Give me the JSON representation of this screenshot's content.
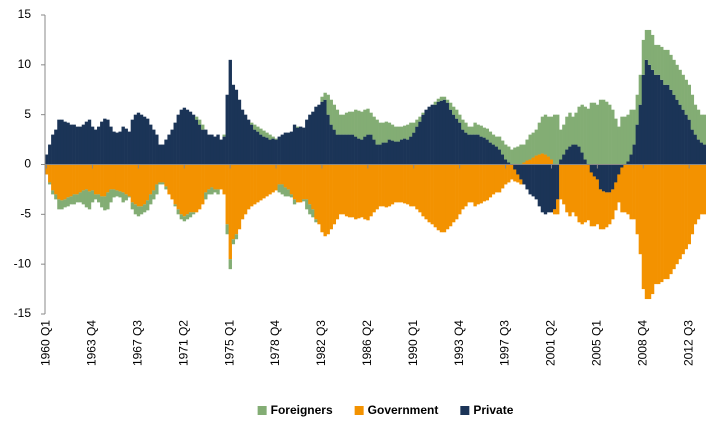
{
  "chart_data": {
    "type": "bar",
    "stacked": true,
    "categories": [
      "1960 Q1",
      null,
      null,
      null,
      null,
      null,
      null,
      null,
      null,
      null,
      null,
      null,
      null,
      null,
      null,
      "1963 Q4",
      null,
      null,
      null,
      null,
      null,
      null,
      null,
      null,
      null,
      null,
      null,
      null,
      null,
      null,
      "1967 Q3",
      null,
      null,
      null,
      null,
      null,
      null,
      null,
      null,
      null,
      null,
      null,
      null,
      null,
      null,
      "1971 Q2",
      null,
      null,
      null,
      null,
      null,
      null,
      null,
      null,
      null,
      null,
      null,
      null,
      null,
      null,
      "1975 Q1",
      null,
      null,
      null,
      null,
      null,
      null,
      null,
      null,
      null,
      null,
      null,
      null,
      null,
      null,
      "1978 Q4",
      null,
      null,
      null,
      null,
      null,
      null,
      null,
      null,
      null,
      null,
      null,
      null,
      null,
      null,
      "1982 Q3",
      null,
      null,
      null,
      null,
      null,
      null,
      null,
      null,
      null,
      null,
      null,
      null,
      null,
      null,
      "1986 Q2",
      null,
      null,
      null,
      null,
      null,
      null,
      null,
      null,
      null,
      null,
      null,
      null,
      null,
      null,
      "1990 Q1",
      null,
      null,
      null,
      null,
      null,
      null,
      null,
      null,
      null,
      null,
      null,
      null,
      null,
      null,
      "1993 Q4",
      null,
      null,
      null,
      null,
      null,
      null,
      null,
      null,
      null,
      null,
      null,
      null,
      null,
      null,
      "1997 Q3",
      null,
      null,
      null,
      null,
      null,
      null,
      null,
      null,
      null,
      null,
      null,
      null,
      null,
      null,
      "2001 Q2",
      null,
      null,
      null,
      null,
      null,
      null,
      null,
      null,
      null,
      null,
      null,
      null,
      null,
      null,
      "2005 Q1",
      null,
      null,
      null,
      null,
      null,
      null,
      null,
      null,
      null,
      null,
      null,
      null,
      null,
      null,
      "2008 Q4",
      null,
      null,
      null,
      null,
      null,
      null,
      null,
      null,
      null,
      null,
      null,
      null,
      null,
      null,
      "2012 Q3",
      null,
      null,
      null,
      null,
      null
    ],
    "series": [
      {
        "name": "Foreigners",
        "color": "#83ad74",
        "values": [
          0,
          -0.2,
          -0.4,
          -0.5,
          -1,
          -0.9,
          -0.8,
          -0.9,
          -0.8,
          -1,
          -0.8,
          -1,
          -1.4,
          -1.8,
          -1.8,
          -1.2,
          -0.5,
          -0.8,
          -1.1,
          -1.4,
          -1.7,
          -1.3,
          -0.8,
          -0.6,
          -0.6,
          -1,
          -0.6,
          -0.1,
          -0.7,
          -1,
          -1,
          -0.8,
          -0.8,
          -1,
          -1,
          -0.9,
          -1,
          -0.2,
          -0.2,
          -0.3,
          0,
          0,
          -0.2,
          -0.5,
          -0.5,
          -0.5,
          -0.5,
          -0.5,
          -0.2,
          0.3,
          0.5,
          0.5,
          -0.7,
          -0.5,
          -0.7,
          -0.3,
          -0.5,
          0,
          0.2,
          -1,
          -1,
          -0.5,
          -0.5,
          0,
          0,
          0,
          0,
          0.2,
          0.5,
          0.5,
          0.6,
          0.6,
          0.5,
          0.5,
          0.2,
          0.1,
          -0.8,
          -1,
          -0.9,
          -0.7,
          -0.3,
          -0.5,
          0.1,
          0,
          -0.2,
          -1,
          -1,
          -0.8,
          -0.3,
          0,
          0.5,
          0.7,
          2,
          2.5,
          2.5,
          2.5,
          2,
          2,
          2.2,
          2.3,
          2.3,
          2.7,
          2.8,
          2.8,
          2.7,
          2.6,
          2.2,
          2.3,
          2.5,
          2.2,
          2,
          2.1,
          1.7,
          1.6,
          1.5,
          1.5,
          1.3,
          1.3,
          1.5,
          1.4,
          1,
          0.7,
          0.5,
          0.2,
          0,
          0,
          0,
          0.3,
          0.3,
          0.4,
          0.3,
          0.3,
          0.7,
          0.8,
          0.9,
          0.8,
          1,
          1,
          0.8,
          0.8,
          1.2,
          1,
          1.1,
          1,
          1.1,
          1.1,
          1,
          1,
          1.3,
          1.4,
          1.5,
          1.6,
          1.5,
          1.7,
          1.8,
          2,
          1.8,
          2.1,
          2.5,
          2.5,
          2.6,
          3.2,
          3.7,
          4,
          4,
          4.3,
          5,
          5,
          3,
          3,
          3.3,
          3.4,
          2.8,
          3.2,
          4,
          4.8,
          5.3,
          5.6,
          6.2,
          6.2,
          6,
          6.5,
          6.5,
          6.3,
          6,
          5.5,
          4.6,
          3.8,
          4.8,
          4.8,
          4.7,
          4.5,
          3.5,
          3,
          3,
          3.5,
          3,
          3.5,
          3.5,
          3,
          3,
          3.3,
          3.5,
          3.5,
          3.5,
          3.5,
          3.5,
          3.5,
          3.5,
          3.5,
          3.5,
          3.5,
          3,
          3,
          2.8,
          3
        ]
      },
      {
        "name": "Government",
        "color": "#f39200",
        "values": [
          -1,
          -1.8,
          -2.6,
          -3,
          -3.5,
          -3.6,
          -3.5,
          -3.3,
          -3.2,
          -3,
          -3,
          -2.8,
          -2.6,
          -2.5,
          -2.7,
          -2.6,
          -3,
          -3,
          -3.2,
          -3.2,
          -2.8,
          -2.5,
          -2.5,
          -2.6,
          -2.7,
          -2.8,
          -3,
          -3.2,
          -3.8,
          -4,
          -4.2,
          -4.2,
          -4,
          -3.6,
          -3,
          -2.6,
          -2,
          -1.8,
          -1.8,
          -2.2,
          -3,
          -3.5,
          -4,
          -4.5,
          -5,
          -5.2,
          -5,
          -4.8,
          -4.8,
          -4.8,
          -4.5,
          -4,
          -2.8,
          -2.5,
          -2.3,
          -2.5,
          -2.5,
          -2.5,
          -3,
          -6,
          -9.5,
          -7.5,
          -7,
          -6.5,
          -5.5,
          -5,
          -4.5,
          -4.2,
          -4,
          -3.8,
          -3.6,
          -3.4,
          -3.2,
          -3,
          -2.8,
          -2.6,
          -2,
          -2,
          -2.3,
          -2.5,
          -3,
          -3.5,
          -3.8,
          -3.8,
          -3.5,
          -3.5,
          -4,
          -4.5,
          -5.5,
          -6,
          -6.8,
          -7.2,
          -7,
          -6.5,
          -6,
          -5.5,
          -5,
          -5,
          -5.2,
          -5.3,
          -5.3,
          -5.5,
          -5.4,
          -5.3,
          -5.5,
          -5.6,
          -5.2,
          -4.8,
          -4.5,
          -4.2,
          -4.2,
          -4.3,
          -4.2,
          -4,
          -3.8,
          -3.8,
          -3.8,
          -3.9,
          -4,
          -4.2,
          -4.2,
          -4.5,
          -4.8,
          -5.2,
          -5.5,
          -5.8,
          -6,
          -6.3,
          -6.6,
          -6.8,
          -6.8,
          -6.5,
          -6.2,
          -5.8,
          -5.5,
          -5,
          -4.5,
          -4.2,
          -3.8,
          -3.8,
          -4.2,
          -4,
          -3.9,
          -3.7,
          -3.6,
          -3.3,
          -3,
          -2.8,
          -2.8,
          -2.4,
          -2,
          -1.8,
          -1.5,
          -1.2,
          -0.8,
          -0.5,
          0.2,
          0.4,
          0.5,
          0.7,
          0.9,
          1,
          1.1,
          1,
          0.8,
          0.5,
          -0.5,
          -1.5,
          -3.5,
          -4,
          -4.8,
          -5.2,
          -4.8,
          -5.2,
          -5.8,
          -6,
          -5.8,
          -5.6,
          -5.4,
          -5,
          -4.5,
          -4,
          -3.8,
          -3.5,
          -3.2,
          -3,
          -2.8,
          -2.8,
          -4.5,
          -4.8,
          -5,
          -5.5,
          -5.5,
          -7,
          -9,
          -12.5,
          -13.5,
          -13.5,
          -13,
          -12,
          -12,
          -11.8,
          -11.5,
          -11.5,
          -11,
          -10.5,
          -10,
          -9.5,
          -9,
          -8.5,
          -8,
          -7,
          -6,
          -5.5,
          -5,
          -5
        ]
      },
      {
        "name": "Private",
        "color": "#1b3457",
        "values": [
          1,
          2,
          3,
          3.5,
          4.5,
          4.5,
          4.3,
          4.2,
          4,
          4,
          3.8,
          3.8,
          4,
          4.3,
          4.5,
          3.8,
          3.5,
          3.8,
          4.3,
          4.6,
          4.5,
          3.8,
          3.3,
          3.2,
          3.3,
          3.8,
          3.6,
          3.3,
          4.5,
          5,
          5.2,
          5,
          4.8,
          4.6,
          4,
          3.5,
          3,
          2,
          2,
          2.5,
          3,
          3.5,
          4.2,
          5,
          5.5,
          5.7,
          5.5,
          5.3,
          5,
          4.5,
          4,
          3.5,
          3.5,
          3,
          3,
          2.8,
          3,
          2.5,
          2.8,
          7,
          10.5,
          8,
          7.5,
          6.5,
          5.5,
          5,
          4.5,
          4,
          3.5,
          3.3,
          3,
          2.8,
          2.7,
          2.5,
          2.6,
          2.5,
          2.8,
          3,
          3.2,
          3.2,
          3.3,
          4,
          3.7,
          3.8,
          3.7,
          4.5,
          5,
          5.3,
          5.8,
          6,
          6.3,
          6.5,
          5,
          4,
          3.5,
          3,
          3,
          3,
          3,
          3,
          3,
          2.8,
          2.6,
          2.5,
          2.8,
          3,
          3,
          2.5,
          2,
          2,
          2.2,
          2.2,
          2.5,
          2.4,
          2.3,
          2.3,
          2.5,
          2.6,
          2.5,
          2.8,
          3.2,
          3.8,
          4.3,
          5,
          5.5,
          5.8,
          6,
          6,
          6.3,
          6.4,
          6.5,
          6.2,
          5.5,
          5,
          4.6,
          4.2,
          3.5,
          3.2,
          3,
          3,
          3,
          3,
          2.8,
          2.7,
          2.5,
          2.2,
          2,
          1.8,
          1.5,
          1,
          0.5,
          0.2,
          0,
          -0.5,
          -1,
          -1.5,
          -2,
          -2.5,
          -3,
          -3.2,
          -3.5,
          -4.2,
          -4.8,
          -5,
          -4.8,
          -4.8,
          -4.5,
          -3.5,
          0.5,
          1,
          1.5,
          1.8,
          2,
          2,
          1.8,
          1.2,
          0.5,
          0,
          -0.8,
          -1.2,
          -1.5,
          -2.5,
          -2.7,
          -2.8,
          -2.8,
          -2.5,
          -1.8,
          -1,
          -0.3,
          0,
          0.3,
          1,
          2,
          4,
          6,
          9,
          10.5,
          10,
          9.5,
          9,
          9,
          8.5,
          8,
          8,
          7.5,
          7,
          6.5,
          6,
          5.5,
          5,
          4.5,
          3.5,
          3,
          2.5,
          2.2,
          2
        ]
      }
    ],
    "ylim": [
      -15,
      15
    ],
    "yticks": [
      -15,
      -10,
      -5,
      0,
      5,
      10,
      15
    ],
    "grid": false,
    "legend": "bottom"
  }
}
